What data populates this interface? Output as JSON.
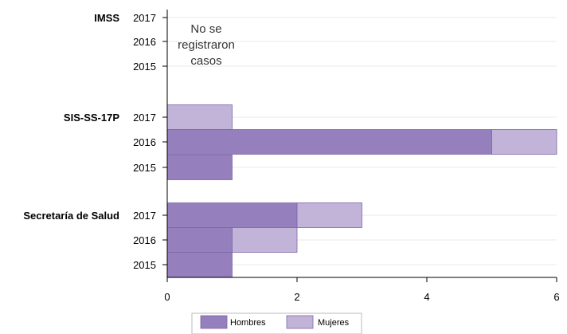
{
  "chart_data": {
    "type": "bar",
    "orientation": "horizontal",
    "stacked": true,
    "groups": [
      {
        "name": "IMSS",
        "years": [
          "2017",
          "2016",
          "2015"
        ],
        "note": [
          "No se",
          "registraron",
          "casos"
        ],
        "values": {
          "Hombres": [
            0,
            0,
            0
          ],
          "Mujeres": [
            0,
            0,
            0
          ]
        }
      },
      {
        "name": "SIS-SS-17P",
        "years": [
          "2017",
          "2016",
          "2015"
        ],
        "values": {
          "Hombres": [
            0,
            5,
            1
          ],
          "Mujeres": [
            1,
            1,
            0
          ]
        }
      },
      {
        "name": "Secretaría de Salud",
        "years": [
          "2017",
          "2016",
          "2015"
        ],
        "values": {
          "Hombres": [
            2,
            1,
            1
          ],
          "Mujeres": [
            1,
            1,
            0
          ]
        }
      }
    ],
    "series": [
      {
        "name": "Hombres",
        "color": "#9580bd"
      },
      {
        "name": "Mujeres",
        "color": "#c2b4d9"
      }
    ],
    "x_ticks": [
      "0",
      "2",
      "4",
      "6"
    ],
    "xlim": [
      0,
      6
    ],
    "grid": true,
    "legend_position": "bottom"
  }
}
